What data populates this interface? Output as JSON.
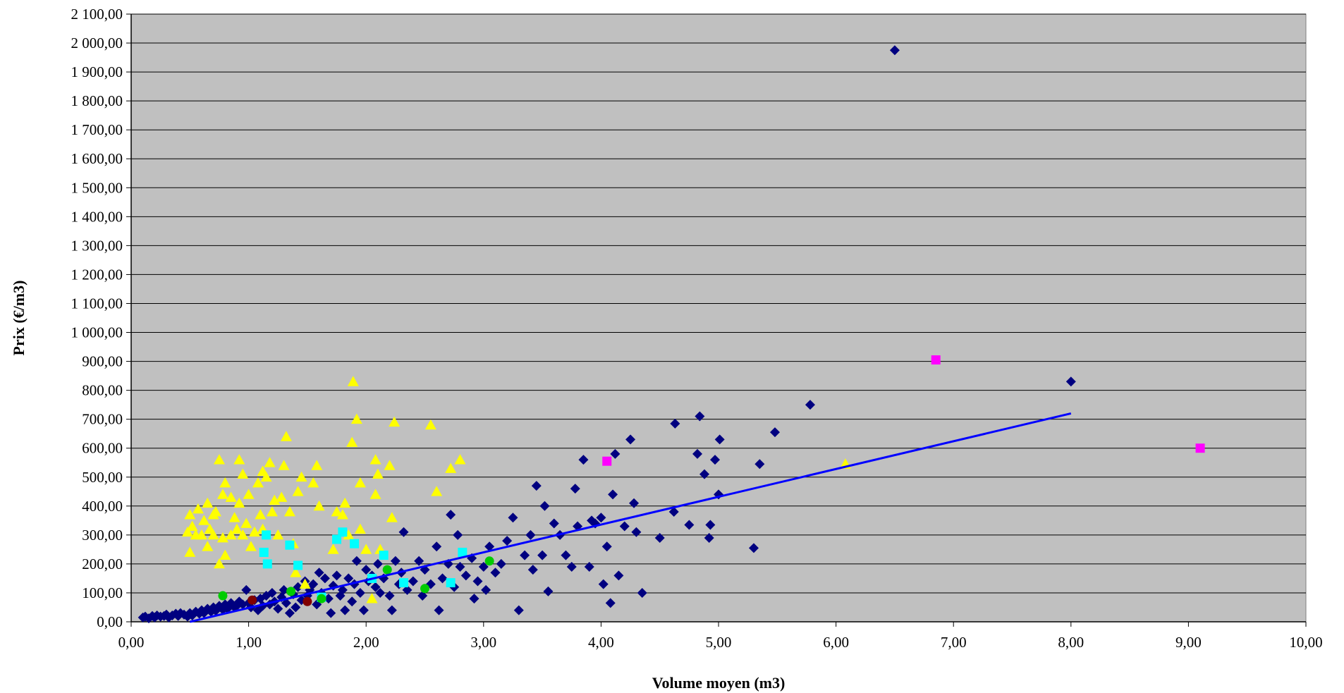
{
  "chart_data": {
    "type": "scatter",
    "xlabel": "Volume moyen (m3)",
    "ylabel": "Prix (€/m3)",
    "xlim": [
      0,
      10
    ],
    "ylim": [
      0,
      2100
    ],
    "x_ticks": [
      "0,00",
      "1,00",
      "2,00",
      "3,00",
      "4,00",
      "5,00",
      "6,00",
      "7,00",
      "8,00",
      "9,00",
      "10,00"
    ],
    "y_ticks": [
      "0,00",
      "100,00",
      "200,00",
      "300,00",
      "400,00",
      "500,00",
      "600,00",
      "700,00",
      "800,00",
      "900,00",
      "1 000,00",
      "1 100,00",
      "1 200,00",
      "1 300,00",
      "1 400,00",
      "1 500,00",
      "1 600,00",
      "1 700,00",
      "1 800,00",
      "1 900,00",
      "2 000,00",
      "2 100,00"
    ],
    "grid": "horizontal",
    "legend": "none",
    "plot_background": "#c0c0c0",
    "series": [
      {
        "marker": "diamond",
        "color": "#000080",
        "points": [
          [
            0.1,
            15
          ],
          [
            0.12,
            18
          ],
          [
            0.15,
            12
          ],
          [
            0.18,
            20
          ],
          [
            0.2,
            15
          ],
          [
            0.22,
            22
          ],
          [
            0.25,
            18
          ],
          [
            0.28,
            20
          ],
          [
            0.3,
            25
          ],
          [
            0.32,
            15
          ],
          [
            0.35,
            22
          ],
          [
            0.38,
            28
          ],
          [
            0.4,
            20
          ],
          [
            0.42,
            30
          ],
          [
            0.45,
            25
          ],
          [
            0.48,
            18
          ],
          [
            0.5,
            30
          ],
          [
            0.52,
            22
          ],
          [
            0.55,
            35
          ],
          [
            0.58,
            28
          ],
          [
            0.6,
            40
          ],
          [
            0.62,
            30
          ],
          [
            0.65,
            45
          ],
          [
            0.68,
            35
          ],
          [
            0.7,
            50
          ],
          [
            0.72,
            38
          ],
          [
            0.75,
            55
          ],
          [
            0.78,
            42
          ],
          [
            0.8,
            60
          ],
          [
            0.82,
            45
          ],
          [
            0.85,
            65
          ],
          [
            0.88,
            50
          ],
          [
            0.9,
            55
          ],
          [
            0.92,
            70
          ],
          [
            0.95,
            60
          ],
          [
            0.98,
            110
          ],
          [
            1.0,
            65
          ],
          [
            1.02,
            50
          ],
          [
            1.05,
            75
          ],
          [
            1.08,
            40
          ],
          [
            1.1,
            80
          ],
          [
            1.12,
            55
          ],
          [
            1.15,
            90
          ],
          [
            1.18,
            60
          ],
          [
            1.2,
            100
          ],
          [
            1.22,
            70
          ],
          [
            1.25,
            45
          ],
          [
            1.28,
            85
          ],
          [
            1.3,
            110
          ],
          [
            1.32,
            65
          ],
          [
            1.35,
            30
          ],
          [
            1.38,
            95
          ],
          [
            1.4,
            50
          ],
          [
            1.42,
            120
          ],
          [
            1.45,
            75
          ],
          [
            1.48,
            140
          ],
          [
            1.5,
            90
          ],
          [
            1.52,
            110
          ],
          [
            1.55,
            130
          ],
          [
            1.58,
            60
          ],
          [
            1.6,
            170
          ],
          [
            1.62,
            100
          ],
          [
            1.65,
            150
          ],
          [
            1.68,
            80
          ],
          [
            1.7,
            30
          ],
          [
            1.72,
            125
          ],
          [
            1.75,
            160
          ],
          [
            1.78,
            90
          ],
          [
            1.8,
            110
          ],
          [
            1.82,
            40
          ],
          [
            1.85,
            150
          ],
          [
            1.88,
            70
          ],
          [
            1.9,
            130
          ],
          [
            1.92,
            210
          ],
          [
            1.95,
            100
          ],
          [
            1.98,
            40
          ],
          [
            2.0,
            180
          ],
          [
            2.02,
            140
          ],
          [
            2.05,
            160
          ],
          [
            2.08,
            120
          ],
          [
            2.1,
            200
          ],
          [
            2.12,
            100
          ],
          [
            2.15,
            150
          ],
          [
            2.2,
            90
          ],
          [
            2.22,
            40
          ],
          [
            2.25,
            210
          ],
          [
            2.28,
            130
          ],
          [
            2.3,
            170
          ],
          [
            2.32,
            310
          ],
          [
            2.35,
            110
          ],
          [
            2.4,
            140
          ],
          [
            2.45,
            210
          ],
          [
            2.48,
            90
          ],
          [
            2.5,
            180
          ],
          [
            2.55,
            130
          ],
          [
            2.6,
            260
          ],
          [
            2.62,
            40
          ],
          [
            2.65,
            150
          ],
          [
            2.7,
            200
          ],
          [
            2.72,
            370
          ],
          [
            2.75,
            120
          ],
          [
            2.78,
            300
          ],
          [
            2.8,
            190
          ],
          [
            2.85,
            160
          ],
          [
            2.9,
            220
          ],
          [
            2.92,
            80
          ],
          [
            2.95,
            140
          ],
          [
            3.0,
            190
          ],
          [
            3.02,
            110
          ],
          [
            3.05,
            260
          ],
          [
            3.1,
            170
          ],
          [
            3.15,
            200
          ],
          [
            3.2,
            280
          ],
          [
            3.25,
            360
          ],
          [
            3.3,
            40
          ],
          [
            3.35,
            230
          ],
          [
            3.4,
            300
          ],
          [
            3.42,
            180
          ],
          [
            3.45,
            470
          ],
          [
            3.5,
            230
          ],
          [
            3.52,
            400
          ],
          [
            3.55,
            105
          ],
          [
            3.6,
            340
          ],
          [
            3.65,
            300
          ],
          [
            3.7,
            230
          ],
          [
            3.75,
            190
          ],
          [
            3.78,
            460
          ],
          [
            3.8,
            330
          ],
          [
            3.85,
            560
          ],
          [
            3.9,
            190
          ],
          [
            3.92,
            350
          ],
          [
            3.95,
            340
          ],
          [
            4.0,
            360
          ],
          [
            4.02,
            130
          ],
          [
            4.05,
            260
          ],
          [
            4.08,
            65
          ],
          [
            4.1,
            440
          ],
          [
            4.12,
            580
          ],
          [
            4.15,
            160
          ],
          [
            4.2,
            330
          ],
          [
            4.25,
            630
          ],
          [
            4.28,
            410
          ],
          [
            4.3,
            310
          ],
          [
            4.35,
            100
          ],
          [
            4.5,
            290
          ],
          [
            4.62,
            380
          ],
          [
            4.63,
            685
          ],
          [
            4.75,
            335
          ],
          [
            4.82,
            580
          ],
          [
            4.84,
            710
          ],
          [
            4.88,
            510
          ],
          [
            4.92,
            290
          ],
          [
            4.93,
            335
          ],
          [
            4.97,
            560
          ],
          [
            5.0,
            440
          ],
          [
            5.01,
            630
          ],
          [
            5.3,
            255
          ],
          [
            5.35,
            545
          ],
          [
            5.48,
            655
          ],
          [
            5.78,
            750
          ],
          [
            6.5,
            1975
          ],
          [
            8.0,
            830
          ]
        ]
      },
      {
        "marker": "triangle",
        "color": "#ffff00",
        "points": [
          [
            0.48,
            310
          ],
          [
            0.5,
            240
          ],
          [
            0.5,
            370
          ],
          [
            0.52,
            330
          ],
          [
            0.55,
            300
          ],
          [
            0.57,
            390
          ],
          [
            0.6,
            300
          ],
          [
            0.62,
            350
          ],
          [
            0.65,
            260
          ],
          [
            0.65,
            410
          ],
          [
            0.67,
            320
          ],
          [
            0.7,
            300
          ],
          [
            0.7,
            370
          ],
          [
            0.72,
            380
          ],
          [
            0.75,
            200
          ],
          [
            0.75,
            560
          ],
          [
            0.78,
            440
          ],
          [
            0.78,
            290
          ],
          [
            0.8,
            230
          ],
          [
            0.8,
            480
          ],
          [
            0.85,
            300
          ],
          [
            0.85,
            430
          ],
          [
            0.88,
            360
          ],
          [
            0.9,
            320
          ],
          [
            0.92,
            560
          ],
          [
            0.92,
            410
          ],
          [
            0.95,
            300
          ],
          [
            0.95,
            510
          ],
          [
            0.98,
            340
          ],
          [
            1.0,
            440
          ],
          [
            1.02,
            260
          ],
          [
            1.05,
            310
          ],
          [
            1.08,
            480
          ],
          [
            1.1,
            370
          ],
          [
            1.12,
            320
          ],
          [
            1.12,
            520
          ],
          [
            1.15,
            500
          ],
          [
            1.18,
            550
          ],
          [
            1.2,
            380
          ],
          [
            1.22,
            420
          ],
          [
            1.25,
            300
          ],
          [
            1.28,
            430
          ],
          [
            1.3,
            540
          ],
          [
            1.32,
            640
          ],
          [
            1.35,
            380
          ],
          [
            1.38,
            270
          ],
          [
            1.4,
            170
          ],
          [
            1.42,
            450
          ],
          [
            1.45,
            500
          ],
          [
            1.48,
            130
          ],
          [
            1.55,
            480
          ],
          [
            1.58,
            540
          ],
          [
            1.6,
            400
          ],
          [
            1.72,
            250
          ],
          [
            1.75,
            380
          ],
          [
            1.8,
            370
          ],
          [
            1.82,
            410
          ],
          [
            1.85,
            300
          ],
          [
            1.88,
            620
          ],
          [
            1.89,
            830
          ],
          [
            1.92,
            700
          ],
          [
            1.95,
            320
          ],
          [
            1.95,
            480
          ],
          [
            2.0,
            250
          ],
          [
            2.05,
            80
          ],
          [
            2.08,
            440
          ],
          [
            2.08,
            560
          ],
          [
            2.1,
            510
          ],
          [
            2.12,
            250
          ],
          [
            2.2,
            540
          ],
          [
            2.22,
            360
          ],
          [
            2.24,
            690
          ],
          [
            2.55,
            680
          ],
          [
            2.6,
            450
          ],
          [
            2.72,
            530
          ],
          [
            2.8,
            560
          ],
          [
            6.08,
            545
          ]
        ]
      },
      {
        "marker": "square",
        "color": "#00ffff",
        "points": [
          [
            1.13,
            240
          ],
          [
            1.15,
            300
          ],
          [
            1.16,
            200
          ],
          [
            1.35,
            265
          ],
          [
            1.42,
            195
          ],
          [
            1.62,
            85
          ],
          [
            1.75,
            285
          ],
          [
            1.8,
            310
          ],
          [
            1.9,
            270
          ],
          [
            2.05,
            150
          ],
          [
            2.15,
            230
          ],
          [
            2.32,
            135
          ],
          [
            2.72,
            135
          ],
          [
            2.82,
            240
          ]
        ]
      },
      {
        "marker": "circle",
        "color": "#00cc00",
        "points": [
          [
            0.78,
            90
          ],
          [
            1.36,
            105
          ],
          [
            1.62,
            80
          ],
          [
            2.18,
            180
          ],
          [
            2.5,
            115
          ],
          [
            3.05,
            210
          ]
        ]
      },
      {
        "marker": "circle",
        "color": "#800000",
        "points": [
          [
            1.03,
            75
          ],
          [
            1.5,
            70
          ]
        ]
      },
      {
        "marker": "square",
        "color": "#ff00ff",
        "points": [
          [
            4.05,
            555
          ],
          [
            6.85,
            905
          ],
          [
            9.1,
            600
          ]
        ]
      }
    ],
    "trendline": {
      "color": "#0000ff",
      "x": [
        0.5,
        8.0
      ],
      "y": [
        0,
        720
      ]
    }
  }
}
